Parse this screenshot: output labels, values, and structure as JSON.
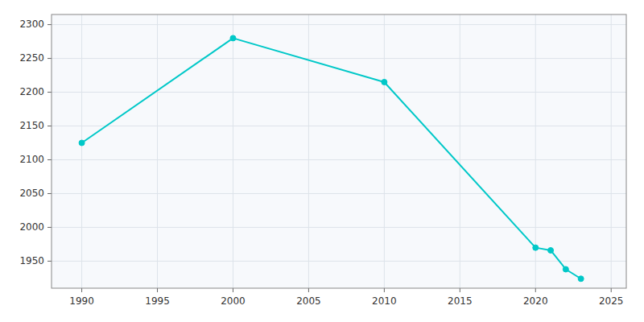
{
  "chart_data": {
    "type": "line",
    "x": [
      1990,
      2000,
      2010,
      2020,
      2021,
      2022,
      2023
    ],
    "values": [
      2125,
      2280,
      2215,
      1970,
      1966,
      1938,
      1924
    ],
    "color": "#00c8c8",
    "marker": "circle",
    "xlim": [
      1988,
      2026
    ],
    "ylim": [
      1910,
      2315
    ],
    "xticks": [
      1990,
      1995,
      2000,
      2005,
      2010,
      2015,
      2020,
      2025
    ],
    "yticks": [
      1950,
      2000,
      2050,
      2100,
      2150,
      2200,
      2250,
      2300
    ],
    "grid": true
  }
}
